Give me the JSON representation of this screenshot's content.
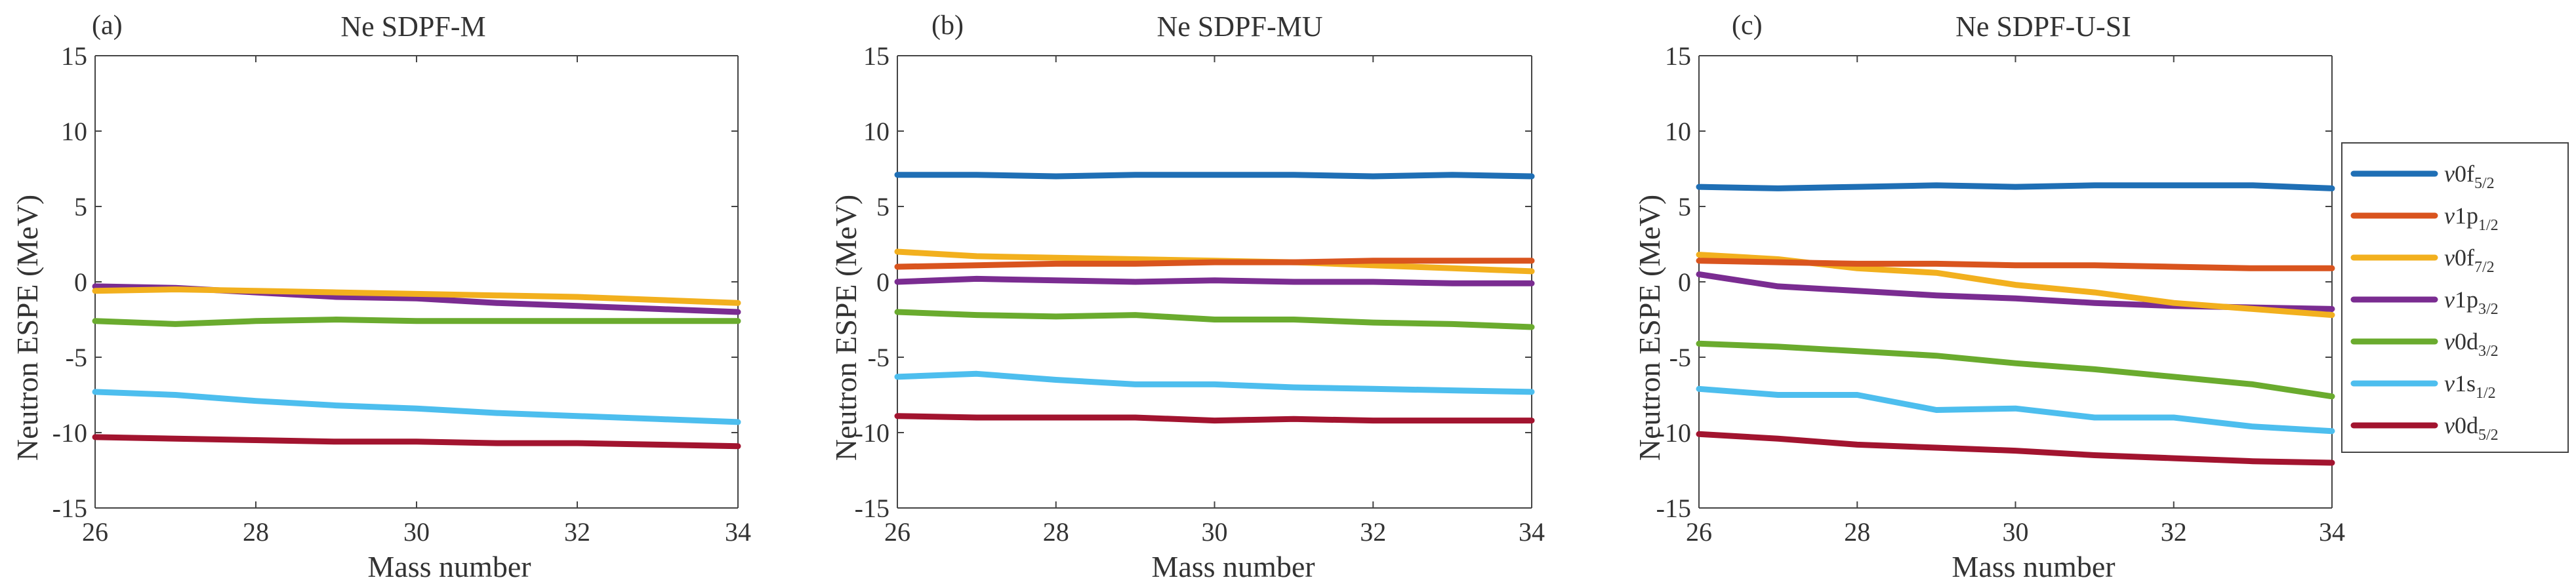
{
  "chart_data": [
    {
      "type": "line",
      "panel_label": "(a)",
      "title": "Ne SDPF-M",
      "xlabel": "Mass number",
      "ylabel": "Neutron ESPE (MeV)",
      "xlim": [
        26,
        34
      ],
      "ylim": [
        -15,
        15
      ],
      "x_ticks": [
        26,
        28,
        30,
        32,
        34
      ],
      "y_ticks": [
        -15,
        -10,
        -5,
        0,
        5,
        10,
        15
      ],
      "x": [
        26,
        27,
        28,
        29,
        30,
        31,
        32,
        33,
        34
      ],
      "series": [
        {
          "key": "0f52",
          "values": null
        },
        {
          "key": "1p12",
          "values": null
        },
        {
          "key": "0f72",
          "values": [
            -0.6,
            -0.5,
            -0.6,
            -0.7,
            -0.8,
            -0.9,
            -1.0,
            -1.2,
            -1.4
          ]
        },
        {
          "key": "1p32",
          "values": [
            -0.3,
            -0.4,
            -0.7,
            -1.0,
            -1.1,
            -1.4,
            -1.6,
            -1.8,
            -2.0
          ]
        },
        {
          "key": "0d32",
          "values": [
            -2.6,
            -2.8,
            -2.6,
            -2.5,
            -2.6,
            -2.6,
            -2.6,
            -2.6,
            -2.6
          ]
        },
        {
          "key": "1s12",
          "values": [
            -7.3,
            -7.5,
            -7.9,
            -8.2,
            -8.4,
            -8.7,
            -8.9,
            -9.1,
            -9.3
          ]
        },
        {
          "key": "0d52",
          "values": [
            -10.3,
            -10.4,
            -10.5,
            -10.6,
            -10.6,
            -10.7,
            -10.7,
            -10.8,
            -10.9
          ]
        }
      ]
    },
    {
      "type": "line",
      "panel_label": "(b)",
      "title": "Ne SDPF-MU",
      "xlabel": "Mass number",
      "ylabel": "Neutron ESPE (MeV)",
      "xlim": [
        26,
        34
      ],
      "ylim": [
        -15,
        15
      ],
      "x_ticks": [
        26,
        28,
        30,
        32,
        34
      ],
      "y_ticks": [
        -15,
        -10,
        -5,
        0,
        5,
        10,
        15
      ],
      "x": [
        26,
        27,
        28,
        29,
        30,
        31,
        32,
        33,
        34
      ],
      "series": [
        {
          "key": "0f52",
          "values": [
            7.1,
            7.1,
            7.0,
            7.1,
            7.1,
            7.1,
            7.0,
            7.1,
            7.0
          ]
        },
        {
          "key": "1p12",
          "values": [
            1.0,
            1.1,
            1.2,
            1.2,
            1.3,
            1.3,
            1.4,
            1.4,
            1.4
          ]
        },
        {
          "key": "0f72",
          "values": [
            2.0,
            1.7,
            1.6,
            1.5,
            1.4,
            1.3,
            1.1,
            0.9,
            0.7
          ]
        },
        {
          "key": "1p32",
          "values": [
            0.0,
            0.2,
            0.1,
            0.0,
            0.1,
            0.0,
            0.0,
            -0.1,
            -0.1
          ]
        },
        {
          "key": "0d32",
          "values": [
            -2.0,
            -2.2,
            -2.3,
            -2.2,
            -2.5,
            -2.5,
            -2.7,
            -2.8,
            -3.0
          ]
        },
        {
          "key": "1s12",
          "values": [
            -6.3,
            -6.1,
            -6.5,
            -6.8,
            -6.8,
            -7.0,
            -7.1,
            -7.2,
            -7.3
          ]
        },
        {
          "key": "0d52",
          "values": [
            -8.9,
            -9.0,
            -9.0,
            -9.0,
            -9.2,
            -9.1,
            -9.2,
            -9.2,
            -9.2
          ]
        }
      ]
    },
    {
      "type": "line",
      "panel_label": "(c)",
      "title": "Ne SDPF-U-SI",
      "xlabel": "Mass number",
      "ylabel": "Neutron ESPE (MeV)",
      "xlim": [
        26,
        34
      ],
      "ylim": [
        -15,
        15
      ],
      "x_ticks": [
        26,
        28,
        30,
        32,
        34
      ],
      "y_ticks": [
        -15,
        -10,
        -5,
        0,
        5,
        10,
        15
      ],
      "x": [
        26,
        27,
        28,
        29,
        30,
        31,
        32,
        33,
        34
      ],
      "series": [
        {
          "key": "0f52",
          "values": [
            6.3,
            6.2,
            6.3,
            6.4,
            6.3,
            6.4,
            6.4,
            6.4,
            6.2
          ]
        },
        {
          "key": "1p12",
          "values": [
            1.4,
            1.3,
            1.2,
            1.2,
            1.1,
            1.1,
            1.0,
            0.9,
            0.9
          ]
        },
        {
          "key": "0f72",
          "values": [
            1.8,
            1.5,
            0.9,
            0.6,
            -0.2,
            -0.7,
            -1.4,
            -1.8,
            -2.2
          ]
        },
        {
          "key": "1p32",
          "values": [
            0.5,
            -0.3,
            -0.6,
            -0.9,
            -1.1,
            -1.4,
            -1.6,
            -1.7,
            -1.8
          ]
        },
        {
          "key": "0d32",
          "values": [
            -4.1,
            -4.3,
            -4.6,
            -4.9,
            -5.4,
            -5.8,
            -6.3,
            -6.8,
            -7.6
          ]
        },
        {
          "key": "1s12",
          "values": [
            -7.1,
            -7.5,
            -7.5,
            -8.5,
            -8.4,
            -9.0,
            -9.0,
            -9.6,
            -9.9
          ]
        },
        {
          "key": "0d52",
          "values": [
            -10.1,
            -10.4,
            -10.8,
            -11.0,
            -11.2,
            -11.5,
            -11.7,
            -11.9,
            -12.0
          ]
        }
      ]
    }
  ],
  "legend": {
    "placement": "right",
    "items": [
      {
        "key": "0f52",
        "nu": "ν",
        "main": "0f",
        "sub": "5/2",
        "color": "#1f6fb5"
      },
      {
        "key": "1p12",
        "nu": "ν",
        "main": "1p",
        "sub": "1/2",
        "color": "#d9541e"
      },
      {
        "key": "0f72",
        "nu": "ν",
        "main": "0f",
        "sub": "7/2",
        "color": "#f2b01e"
      },
      {
        "key": "1p32",
        "nu": "ν",
        "main": "1p",
        "sub": "3/2",
        "color": "#7a2c91"
      },
      {
        "key": "0d32",
        "nu": "ν",
        "main": "0d",
        "sub": "3/2",
        "color": "#6aab2e"
      },
      {
        "key": "1s12",
        "nu": "ν",
        "main": "1s",
        "sub": "1/2",
        "color": "#4dbeee"
      },
      {
        "key": "0d52",
        "nu": "ν",
        "main": "0d",
        "sub": "5/2",
        "color": "#a2142f"
      }
    ]
  }
}
